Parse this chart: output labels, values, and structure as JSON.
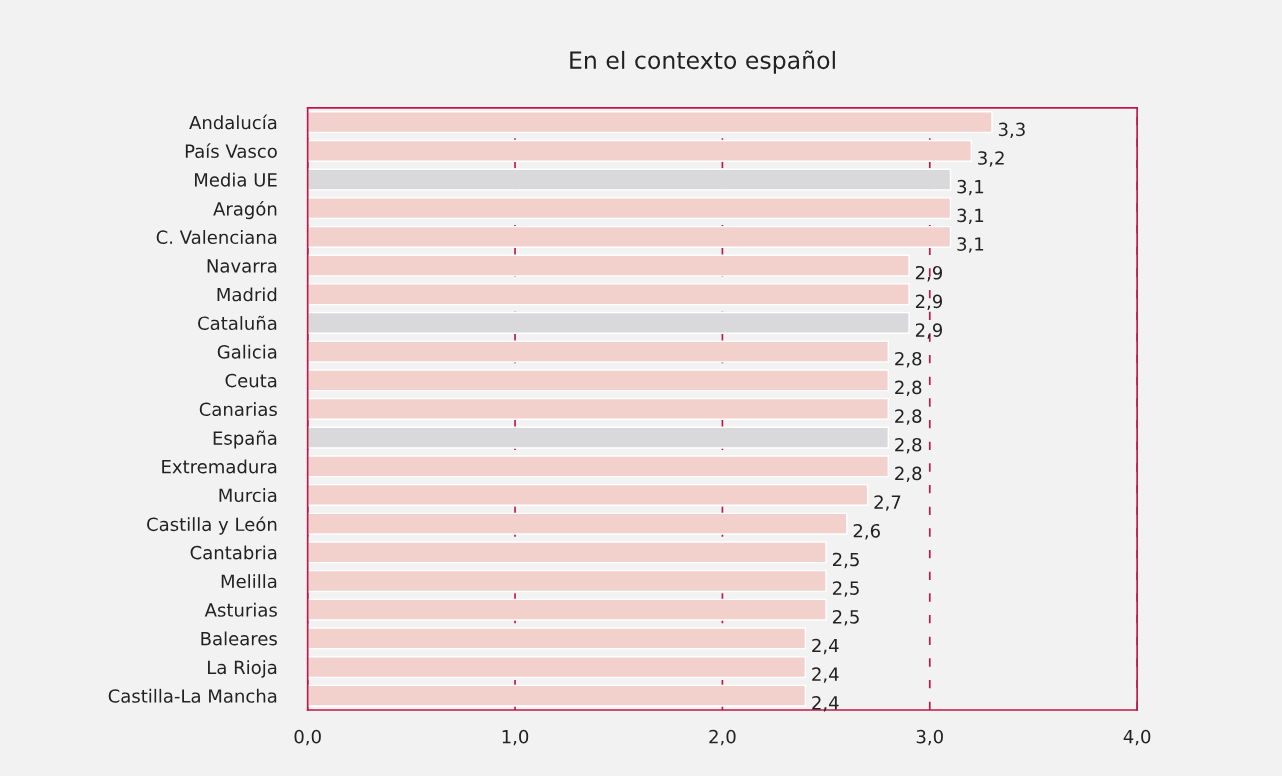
{
  "chart_data": {
    "type": "bar",
    "title": "En el contexto español",
    "orientation": "horizontal",
    "categories": [
      "Andalucía",
      "País Vasco",
      "Media UE",
      "Aragón",
      "C. Valenciana",
      "Navarra",
      "Madrid",
      "Cataluña",
      "Galicia",
      "Ceuta",
      "Canarias",
      "España",
      "Extremadura",
      "Murcia",
      "Castilla y León",
      "Cantabria",
      "Melilla",
      "Asturias",
      "Baleares",
      "La Rioja",
      "Castilla-La Mancha"
    ],
    "values": [
      3.3,
      3.2,
      3.1,
      3.1,
      3.1,
      2.9,
      2.9,
      2.9,
      2.8,
      2.8,
      2.8,
      2.8,
      2.8,
      2.7,
      2.6,
      2.5,
      2.5,
      2.5,
      2.4,
      2.4,
      2.4
    ],
    "value_labels": [
      "3,3",
      "3,2",
      "3,1",
      "3,1",
      "3,1",
      "2,9",
      "2,9",
      "2,9",
      "2,8",
      "2,8",
      "2,8",
      "2,8",
      "2,8",
      "2,7",
      "2,6",
      "2,5",
      "2,5",
      "2,5",
      "2,4",
      "2,4",
      "2,4"
    ],
    "colors": [
      "#f2d0cc",
      "#f2d0cc",
      "#d9d9db",
      "#f2d0cc",
      "#f2d0cc",
      "#f2d0cc",
      "#f2d0cc",
      "#d9d9db",
      "#f2d0cc",
      "#f2d0cc",
      "#f2d0cc",
      "#d9d9db",
      "#f2d0cc",
      "#f2d0cc",
      "#f2d0cc",
      "#f2d0cc",
      "#f2d0cc",
      "#f2d0cc",
      "#f2d0cc",
      "#f2d0cc",
      "#f2d0cc"
    ],
    "xlim": [
      0,
      4
    ],
    "xticks": [
      {
        "value": 0,
        "label": "0,0"
      },
      {
        "value": 1,
        "label": "1,0"
      },
      {
        "value": 2,
        "label": "2,0"
      },
      {
        "value": 3,
        "label": "3,0"
      },
      {
        "value": 4,
        "label": "4,0"
      }
    ],
    "grid": "x"
  }
}
